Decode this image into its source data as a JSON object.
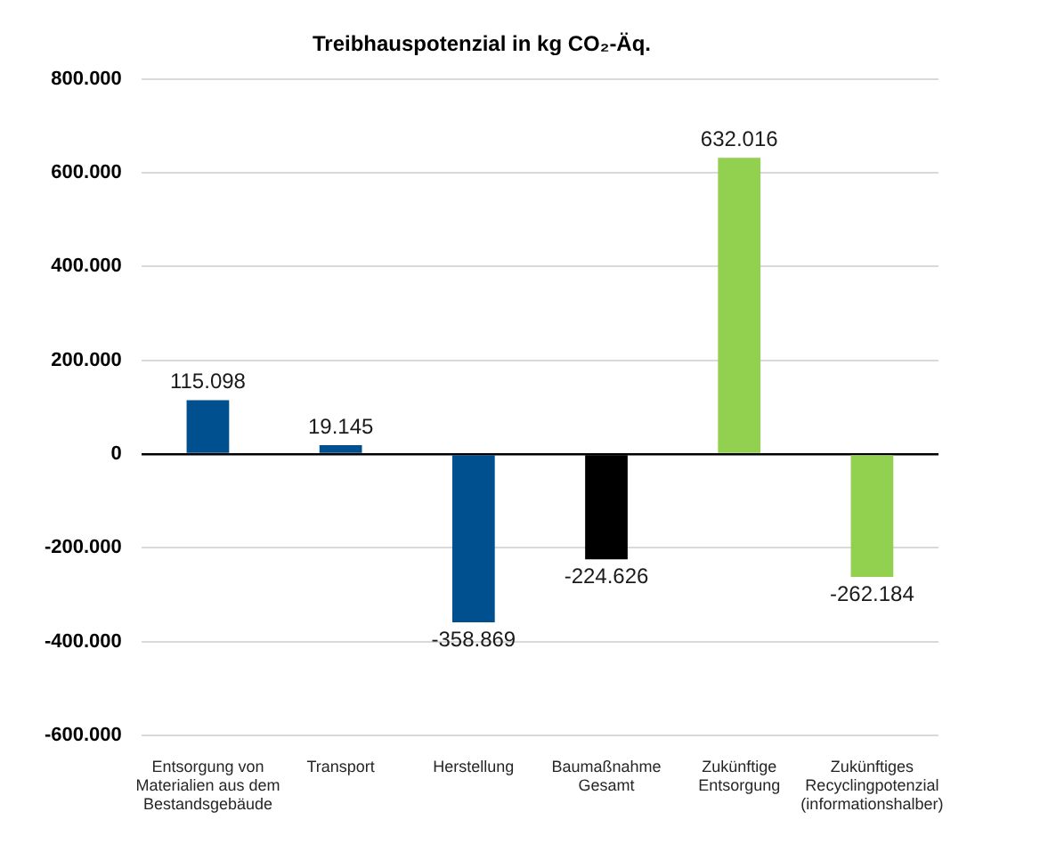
{
  "chart_data": {
    "type": "bar",
    "title": "Treibhauspotenzial in kg CO₂-Äq.",
    "categories": [
      "Entsorgung von Materialien aus dem Bestandsgebäude",
      "Transport",
      "Herstellung",
      "Baumaßnahme Gesamt",
      "Zukünftige Entsorgung",
      "Zukünftiges Recyclingpotenzial (informationshalber)"
    ],
    "values": [
      115098,
      19145,
      -358869,
      -224626,
      632016,
      -262184
    ],
    "colors": [
      "#00508f",
      "#00508f",
      "#00508f",
      "#000000",
      "#92d050",
      "#92d050"
    ],
    "value_labels": [
      "115.098",
      "19.145",
      "-358.869",
      "-224.626",
      "632.016",
      "-262.184"
    ],
    "ylim": [
      -600000,
      800000
    ],
    "yticks": [
      {
        "value": -600000,
        "label": "-600.000"
      },
      {
        "value": -400000,
        "label": "-400.000"
      },
      {
        "value": -200000,
        "label": "-200.000"
      },
      0,
      {
        "value": 200000,
        "label": "200.000"
      },
      {
        "value": 400000,
        "label": "400.000"
      },
      {
        "value": 600000,
        "label": "600.000"
      },
      {
        "value": 800000,
        "label": "800.000"
      }
    ],
    "grid": "y"
  }
}
